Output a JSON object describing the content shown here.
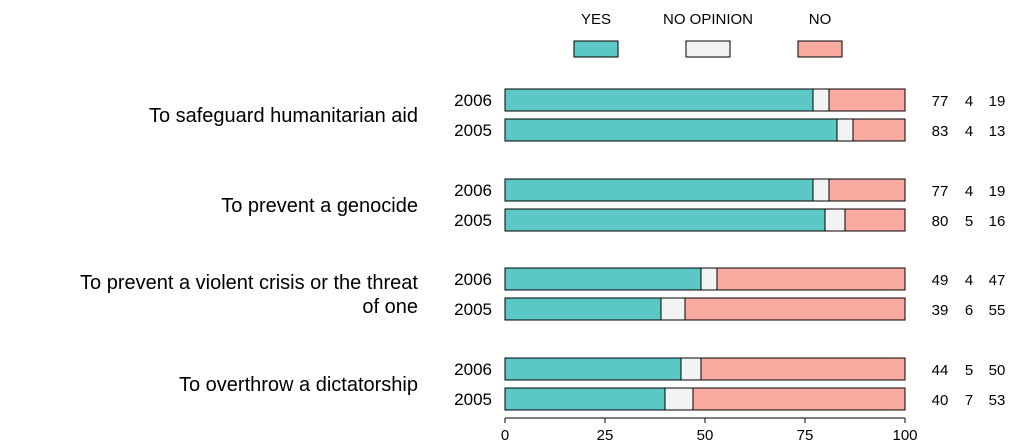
{
  "chart_data": {
    "type": "bar",
    "orientation": "horizontal",
    "stacked": true,
    "legend": {
      "placement": "top",
      "entries": [
        {
          "name": "YES",
          "color": "#5BC8C6"
        },
        {
          "name": "NO OPINION",
          "color": "#F3F3F3"
        },
        {
          "name": "NO",
          "color": "#F8AAA0"
        }
      ]
    },
    "xlim": [
      0,
      100
    ],
    "xticks": [
      "0",
      "25",
      "50",
      "75",
      "100"
    ],
    "grid": false,
    "groups": [
      {
        "category": "To safeguard humanitarian aid",
        "category_lines": [
          "To safeguard humanitarian aid"
        ],
        "bars": [
          {
            "year": "2006",
            "values": [
              77,
              4,
              19
            ]
          },
          {
            "year": "2005",
            "values": [
              83,
              4,
              13
            ]
          }
        ]
      },
      {
        "category": "To prevent a genocide",
        "category_lines": [
          "To prevent a genocide"
        ],
        "bars": [
          {
            "year": "2006",
            "values": [
              77,
              4,
              19
            ]
          },
          {
            "year": "2005",
            "values": [
              80,
              5,
              16
            ]
          }
        ]
      },
      {
        "category": "To prevent a violent crisis or the threat of one",
        "category_lines": [
          "To prevent a violent crisis or the threat",
          "of one"
        ],
        "bars": [
          {
            "year": "2006",
            "values": [
              49,
              4,
              47
            ]
          },
          {
            "year": "2005",
            "values": [
              39,
              6,
              55
            ]
          }
        ]
      },
      {
        "category": "To overthrow a dictatorship",
        "category_lines": [
          "To overthrow a dictatorship"
        ],
        "bars": [
          {
            "year": "2006",
            "values": [
              44,
              5,
              50
            ]
          },
          {
            "year": "2005",
            "values": [
              40,
              7,
              53
            ]
          }
        ]
      }
    ]
  }
}
